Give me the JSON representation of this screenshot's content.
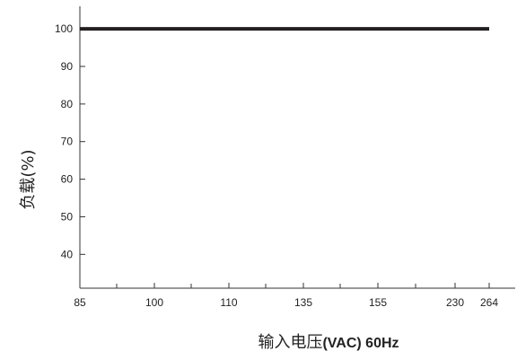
{
  "chart_data": {
    "type": "line",
    "x_ticks": [
      "85",
      "100",
      "110",
      "135",
      "155",
      "230",
      "264"
    ],
    "y_ticks": [
      40,
      50,
      60,
      70,
      80,
      90,
      100
    ],
    "ylim": [
      31,
      106
    ],
    "series": [
      {
        "x": [
          "85",
          "264"
        ],
        "y": [
          100,
          100
        ]
      }
    ],
    "xlabel": {
      "cn": "输入电压",
      "en": "(VAC) 60Hz"
    },
    "ylabel": "负载(%)",
    "grid": false,
    "line_color": "#231f20"
  }
}
